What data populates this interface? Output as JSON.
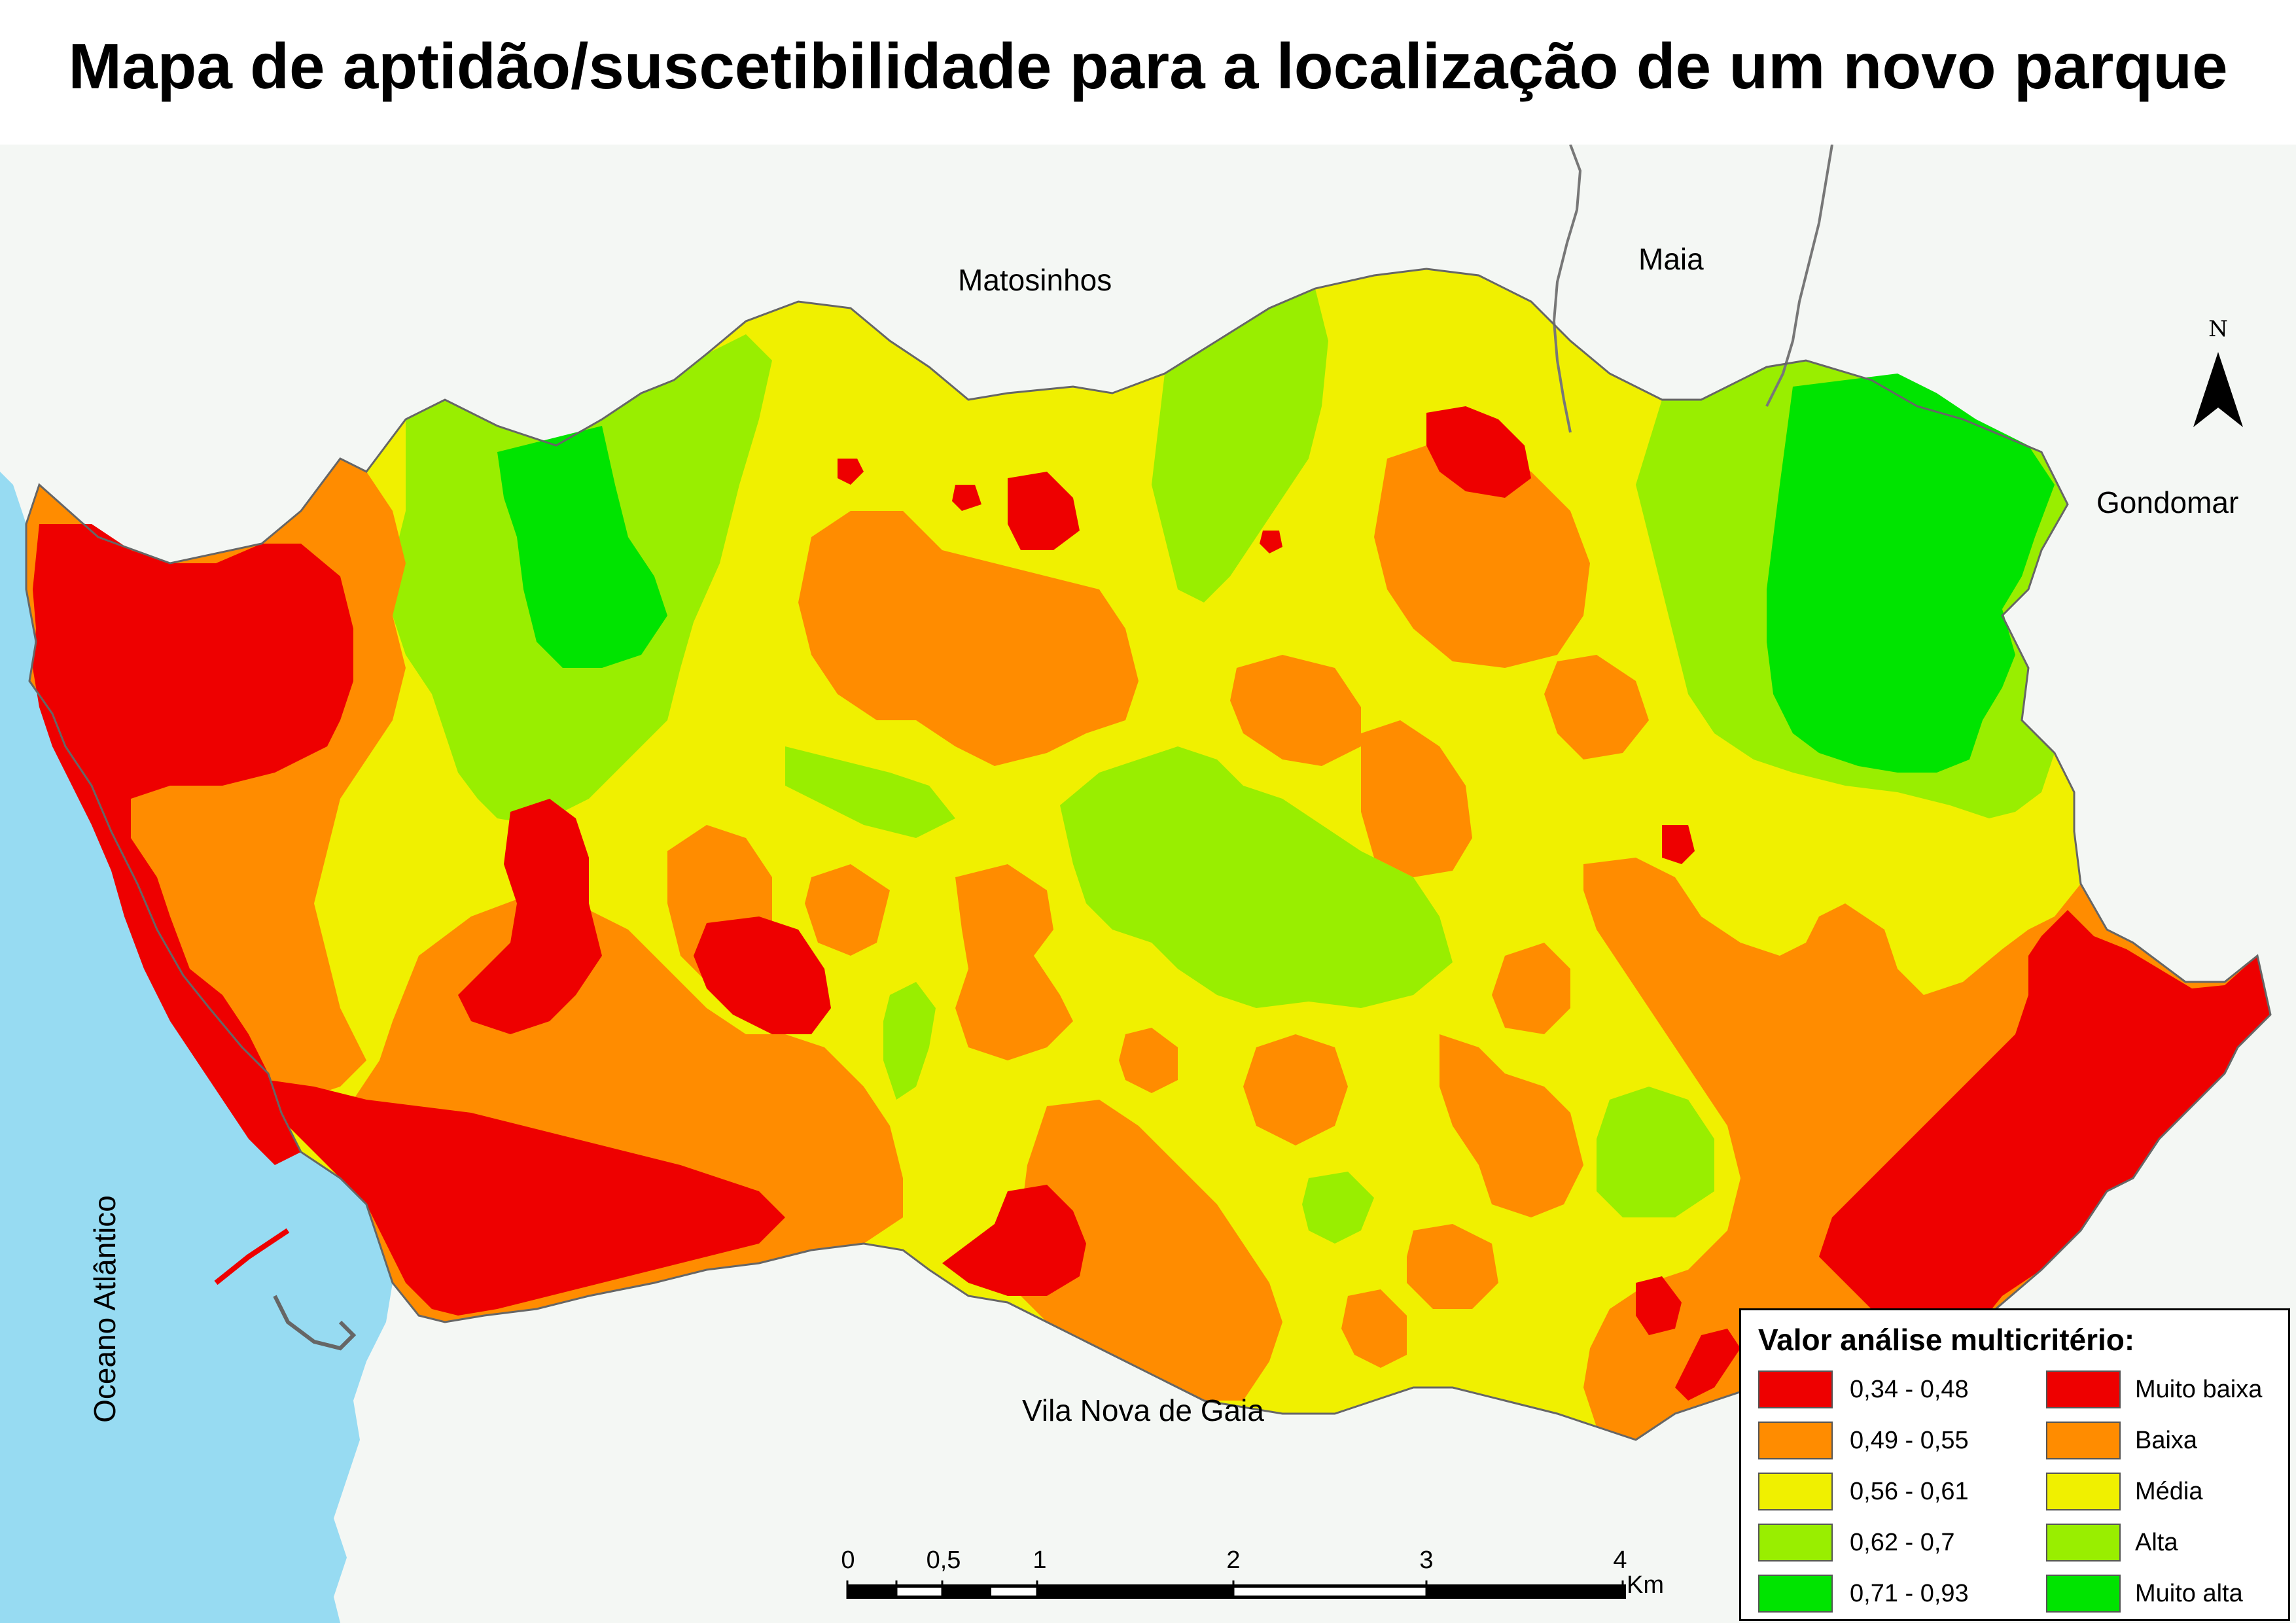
{
  "title": "Mapa de aptidão/suscetibilidade para a localização de um novo parque",
  "places": {
    "north": "Matosinhos",
    "northeast": "Maia",
    "east": "Gondomar",
    "south": "Vila Nova de Gaia",
    "west_ocean": "Oceano Atlântico"
  },
  "north_arrow": {
    "letter": "N"
  },
  "scale_bar": {
    "ticks": [
      "0",
      "0,5",
      "1",
      "2",
      "3",
      "4"
    ],
    "unit": "Km"
  },
  "legend": {
    "title": "Valor análise multicritério:",
    "classes": [
      {
        "range": "0,34 - 0,48",
        "label": "Muito baixa",
        "color": "#ee0000"
      },
      {
        "range": "0,49 - 0,55",
        "label": "Baixa",
        "color": "#ff8c00"
      },
      {
        "range": "0,56 - 0,61",
        "label": "Média",
        "color": "#f0f000"
      },
      {
        "range": "0,62 - 0,7",
        "label": "Alta",
        "color": "#99ee00"
      },
      {
        "range": "0,71 - 0,93",
        "label": "Muito alta",
        "color": "#00e400"
      }
    ]
  },
  "colors": {
    "land_background": "#f4f7f4",
    "ocean": "#97dbf2",
    "boundary_line": "#555555"
  }
}
